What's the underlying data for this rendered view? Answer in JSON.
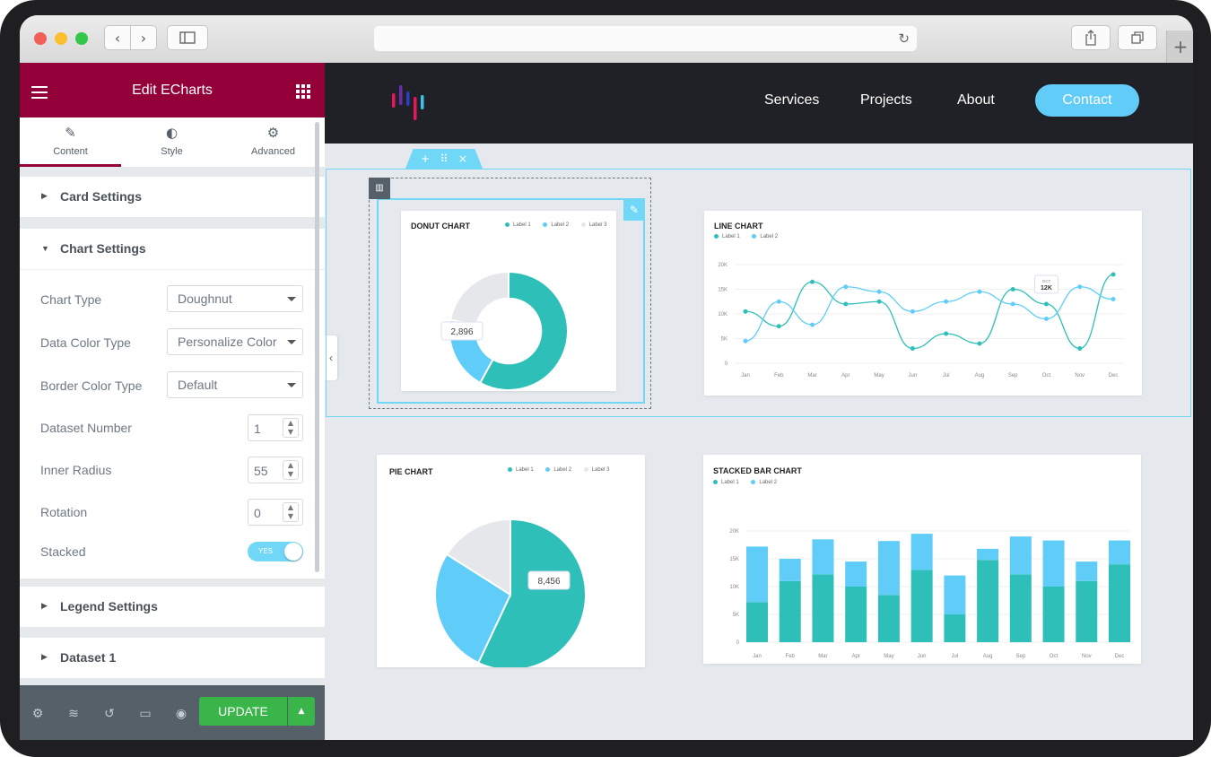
{
  "colors": {
    "accent": "#93003a",
    "teal": "#2ebfb8",
    "blue": "#5fcdf8",
    "gray": "#e5e7ea",
    "update": "#39b54a"
  },
  "browser": {
    "back_icon": "‹",
    "forward_icon": "›",
    "reload_icon": "↻",
    "new_tab_icon": "+"
  },
  "panel": {
    "title": "Edit ECharts",
    "tabs": [
      {
        "label": "Content",
        "icon": "pencil-icon"
      },
      {
        "label": "Style",
        "icon": "contrast-icon"
      },
      {
        "label": "Advanced",
        "icon": "gear-icon"
      }
    ],
    "sections": {
      "card": "Card Settings",
      "chart": "Chart Settings",
      "legend": "Legend Settings",
      "dataset": "Dataset 1"
    },
    "controls": {
      "chart_type": {
        "label": "Chart Type",
        "value": "Doughnut"
      },
      "data_color_type": {
        "label": "Data Color Type",
        "value": "Personalize Color"
      },
      "border_color_type": {
        "label": "Border Color Type",
        "value": "Default"
      },
      "dataset_number": {
        "label": "Dataset Number",
        "value": "1"
      },
      "inner_radius": {
        "label": "Inner Radius",
        "value": "55"
      },
      "rotation": {
        "label": "Rotation",
        "value": "0"
      },
      "stacked": {
        "label": "Stacked",
        "value": "YES"
      }
    },
    "footer": {
      "update_label": "UPDATE"
    }
  },
  "site": {
    "nav": [
      "Services",
      "Projects",
      "About"
    ],
    "contact": "Contact"
  },
  "chart_data": [
    {
      "type": "pie",
      "title": "DONUT CHART",
      "legend": [
        "Label 1",
        "Label 2",
        "Label 3"
      ],
      "values": [
        58,
        20,
        22
      ],
      "inner_radius": 55,
      "tooltip": "2,896"
    },
    {
      "type": "line",
      "title": "LINE CHART",
      "legend": [
        "Label 1",
        "Label 2"
      ],
      "categories": [
        "Jan",
        "Feb",
        "Mar",
        "Apr",
        "May",
        "Jun",
        "Jul",
        "Aug",
        "Sep",
        "Oct",
        "Nov",
        "Dec"
      ],
      "yticks": [
        "20K",
        "15K",
        "10K",
        "5K",
        "0"
      ],
      "ylim": [
        0,
        20000
      ],
      "series": [
        {
          "name": "Label 1",
          "values": [
            10500,
            7500,
            16500,
            12000,
            12500,
            3000,
            6000,
            4000,
            15000,
            12000,
            3000,
            18000
          ]
        },
        {
          "name": "Label 2",
          "values": [
            4500,
            12500,
            7800,
            15500,
            14500,
            10500,
            12500,
            14500,
            12000,
            9000,
            15500,
            13000
          ]
        }
      ],
      "tooltip": {
        "label": "OCT",
        "value": "12K"
      }
    },
    {
      "type": "pie",
      "title": "PIE CHART",
      "legend": [
        "Label 1",
        "Label 2",
        "Label 3"
      ],
      "values": [
        57,
        27,
        16
      ],
      "tooltip": "8,456"
    },
    {
      "type": "bar",
      "title": "STACKED BAR CHART",
      "legend": [
        "Label 1",
        "Label 2"
      ],
      "categories": [
        "Jan",
        "Feb",
        "Mar",
        "Apr",
        "May",
        "Jun",
        "Jul",
        "Aug",
        "Sep",
        "Oct",
        "Nov",
        "Dec"
      ],
      "yticks": [
        "20K",
        "15K",
        "10K",
        "5K",
        "0"
      ],
      "ylim": [
        0,
        20000
      ],
      "series": [
        {
          "name": "Label 1",
          "values": [
            7200,
            11000,
            12200,
            10000,
            8500,
            13000,
            5000,
            14800,
            12200,
            10000,
            11000,
            14000
          ]
        },
        {
          "name": "Label 2",
          "values": [
            10000,
            4000,
            6300,
            4500,
            9700,
            6500,
            7000,
            2000,
            6800,
            8300,
            3500,
            4300
          ]
        }
      ]
    }
  ]
}
